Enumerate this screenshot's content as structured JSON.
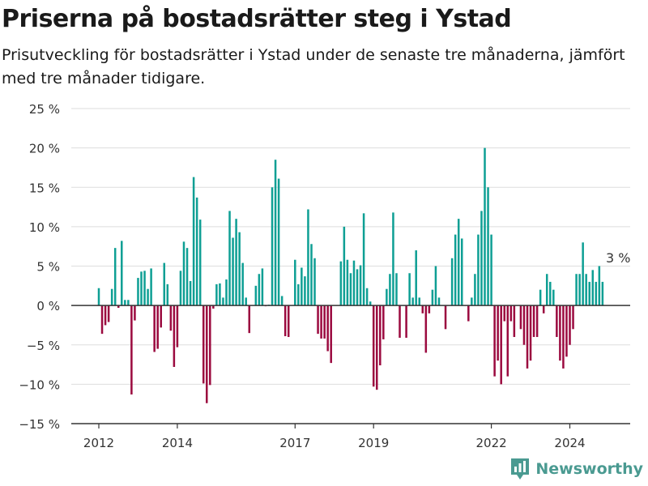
{
  "title": "Priserna på bostadsrätter steg i Ystad",
  "subtitle": "Prisutveckling för bostadsrätter i Ystad under de senaste tre månaderna, jämfört med tre månader tidigare.",
  "brand": {
    "name": "Newsworthy",
    "icon": "newsworthy-logo-icon",
    "color": "#4a9a91"
  },
  "colors": {
    "positive": "#0e9f94",
    "negative": "#9b0a3f",
    "grid": "#dddddd",
    "axis": "#333333",
    "text": "#333333"
  },
  "chart_data": {
    "type": "bar",
    "ylim": [
      -15,
      25
    ],
    "yticks": [
      -15,
      -10,
      -5,
      0,
      5,
      10,
      15,
      20,
      25
    ],
    "ytick_labels": [
      "−15 %",
      "−10 %",
      "−5 %",
      "0 %",
      "5 %",
      "10 %",
      "15 %",
      "20 %",
      "25 %"
    ],
    "xlim": [
      "2011-10",
      "2025-09"
    ],
    "xticks": [
      "2012-01",
      "2014-01",
      "2017-01",
      "2019-01",
      "2022-01",
      "2024-01"
    ],
    "xtick_labels": [
      "2012",
      "2014",
      "2017",
      "2019",
      "2022",
      "2024"
    ],
    "start_month": "2012-01",
    "annotation": {
      "month": "2025-01",
      "value": 3,
      "text": "3 %"
    },
    "values": [
      2.2,
      -3.6,
      -2.5,
      -2.1,
      2.1,
      7.3,
      -0.3,
      8.2,
      0.7,
      0.7,
      -11.3,
      -1.9,
      3.5,
      4.3,
      4.4,
      2.1,
      4.7,
      -5.9,
      -5.5,
      -2.8,
      5.4,
      2.7,
      -3.2,
      -7.8,
      -5.3,
      4.4,
      8.1,
      7.3,
      3.1,
      16.3,
      13.7,
      10.9,
      -9.9,
      -12.4,
      -10.1,
      -0.4,
      2.7,
      2.8,
      1.0,
      3.3,
      12.0,
      8.6,
      11.0,
      9.3,
      5.4,
      1.0,
      -3.5,
      0.0,
      2.5,
      4.0,
      4.7,
      -0.1,
      0.1,
      15.0,
      18.5,
      16.1,
      1.2,
      -3.9,
      -4.0,
      0.0,
      5.8,
      2.7,
      4.8,
      3.7,
      12.2,
      7.8,
      6.0,
      -3.6,
      -4.2,
      -4.2,
      -5.8,
      -7.3,
      0.0,
      0.0,
      5.6,
      10.0,
      5.8,
      4.1,
      5.7,
      4.6,
      5.1,
      11.7,
      2.2,
      0.5,
      -10.3,
      -10.7,
      -7.6,
      -4.3,
      2.1,
      4.0,
      11.8,
      4.1,
      -4.1,
      0.0,
      -4.1,
      4.1,
      1.0,
      7.0,
      1.0,
      -1.0,
      -6.0,
      -1.0,
      2.0,
      5.0,
      1.0,
      0.0,
      -3.0,
      0.0,
      6.0,
      9.0,
      11.0,
      8.5,
      0.0,
      -2.0,
      1.0,
      4.0,
      9.0,
      12.0,
      20.0,
      15.0,
      9.0,
      -9.0,
      -7.0,
      -10.0,
      -2.0,
      -9.0,
      -2.0,
      -4.0,
      0.0,
      -3.0,
      -5.0,
      -8.0,
      -7.0,
      -4.0,
      -4.0,
      2.0,
      -1.0,
      4.0,
      3.0,
      2.0,
      -4.0,
      -7.0,
      -8.0,
      -6.5,
      -5.0,
      -3.0,
      4.0,
      4.0,
      8.0,
      4.0,
      3.0,
      4.5,
      3.0,
      5.0,
      3.0
    ]
  }
}
